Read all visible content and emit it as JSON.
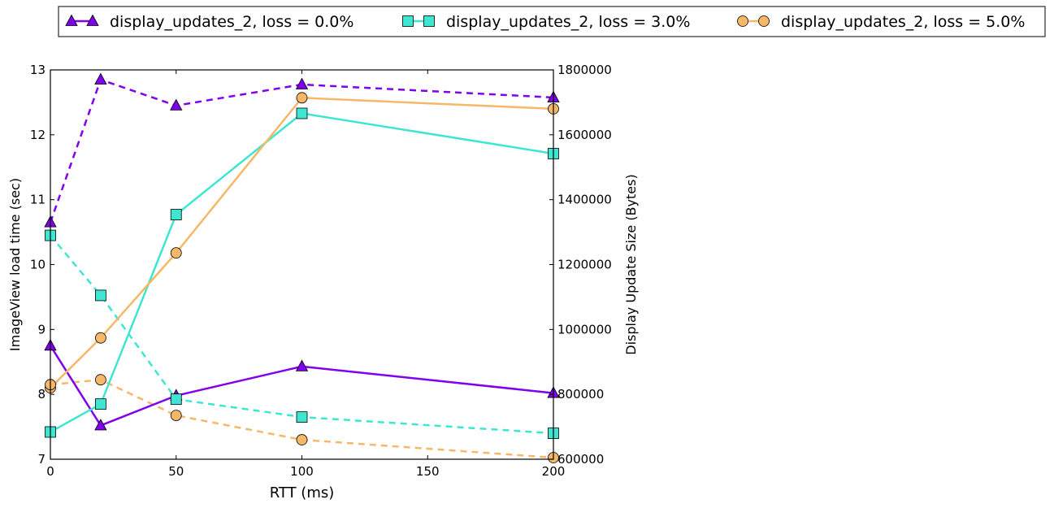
{
  "chart_data": {
    "type": "line",
    "xlabel": "RTT (ms)",
    "ylabel_left": "ImageView load time (sec)",
    "ylabel_right": "Display Update Size (Bytes)",
    "xlim": [
      0,
      200
    ],
    "ylim_left": [
      7,
      13
    ],
    "ylim_right": [
      600000,
      1800000
    ],
    "x_ticks": [
      0,
      50,
      100,
      150,
      200
    ],
    "y_left_ticks": [
      7,
      8,
      9,
      10,
      11,
      12,
      13
    ],
    "y_right_ticks": [
      600000,
      800000,
      1000000,
      1200000,
      1400000,
      1600000,
      1800000
    ],
    "grid": false,
    "legend_position": "top",
    "x": [
      0,
      20,
      50,
      100,
      200
    ],
    "series": [
      {
        "name": "display_updates_2, loss = 0.0%",
        "color": "#8000ee",
        "marker": "triangle",
        "load_time": [
          8.75,
          7.52,
          7.98,
          8.43,
          8.02
        ],
        "update_size": [
          1330000,
          1770000,
          1690000,
          1755000,
          1715000
        ]
      },
      {
        "name": "display_updates_2, loss = 3.0%",
        "color": "#3ee6d2",
        "marker": "square",
        "load_time": [
          7.42,
          7.85,
          10.77,
          12.33,
          11.71
        ],
        "update_size": [
          1290000,
          1105000,
          785000,
          730000,
          680000
        ]
      },
      {
        "name": "display_updates_2, loss = 5.0%",
        "color": "#f5b868",
        "marker": "circle",
        "load_time": [
          8.1,
          8.87,
          10.18,
          12.57,
          12.4
        ],
        "update_size": [
          830000,
          845000,
          735000,
          660000,
          605000
        ]
      }
    ]
  }
}
